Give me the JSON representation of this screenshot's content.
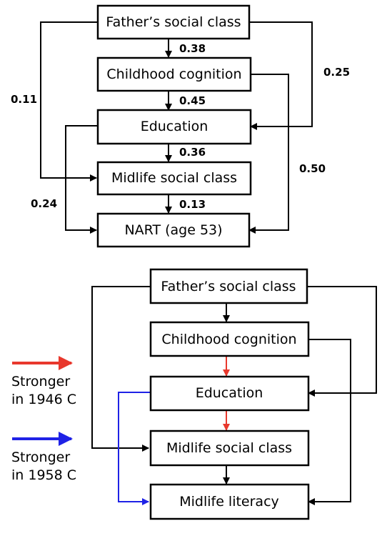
{
  "diagram_a": {
    "boxes": {
      "fathers_class": "Father’s social class",
      "childhood_cognition": "Childhood cognition",
      "education": "Education",
      "midlife_class": "Midlife social class",
      "nart": "NART (age 53)"
    },
    "coefficients": {
      "father_to_childhood": "0.38",
      "childhood_to_education": "0.45",
      "education_to_midlife": "0.36",
      "midlife_to_nart": "0.13",
      "father_to_education": "0.25",
      "father_to_midlife": "0.11",
      "childhood_to_nart": "0.50",
      "education_to_nart": "0.24"
    }
  },
  "diagram_b": {
    "boxes": {
      "fathers_class": "Father’s social class",
      "childhood_cognition": "Childhood cognition",
      "education": "Education",
      "midlife_class": "Midlife social class",
      "midlife_literacy": "Midlife literacy"
    }
  },
  "legend": {
    "red": {
      "line1": "Stronger",
      "line2": "in 1946 C",
      "color": "#e8382d"
    },
    "blue": {
      "line1": "Stronger",
      "line2": "in 1958 C",
      "color": "#1f22e6"
    }
  }
}
